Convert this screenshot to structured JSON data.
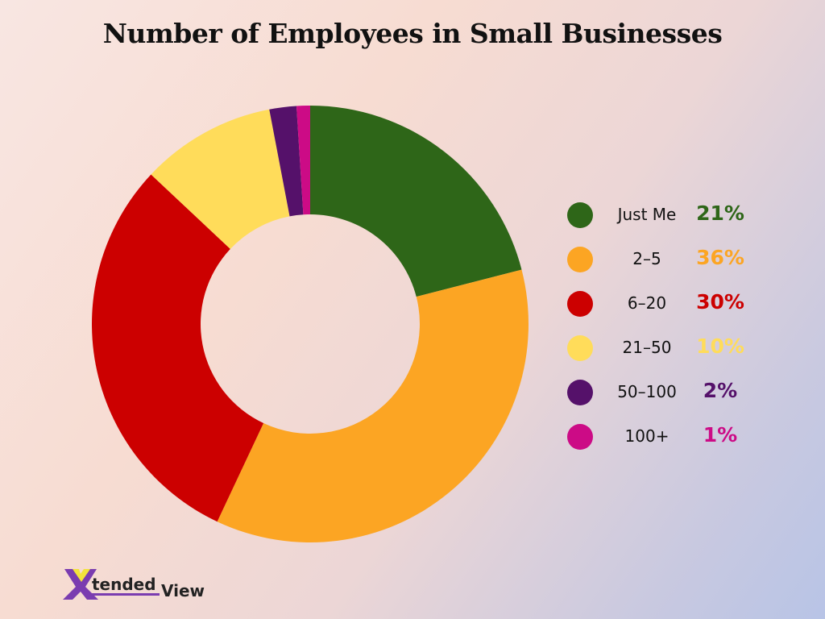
{
  "chart_data": {
    "type": "pie",
    "variant": "donut",
    "title": "Number of Employees in Small Businesses",
    "categories": [
      "Just Me",
      "2–5",
      "6–20",
      "21–50",
      "50–100",
      "100+"
    ],
    "values": [
      21,
      36,
      30,
      10,
      2,
      1
    ],
    "labels": [
      "21%",
      "36%",
      "30%",
      "10%",
      "2%",
      "1%"
    ],
    "colors": [
      "#2e6618",
      "#fca523",
      "#cc0000",
      "#ffdc5a",
      "#55116a",
      "#cc0b86"
    ],
    "legend": "right"
  },
  "logo": {
    "text": "XtendedView",
    "colors": [
      "#7a3cb0",
      "#f2e23c"
    ]
  }
}
